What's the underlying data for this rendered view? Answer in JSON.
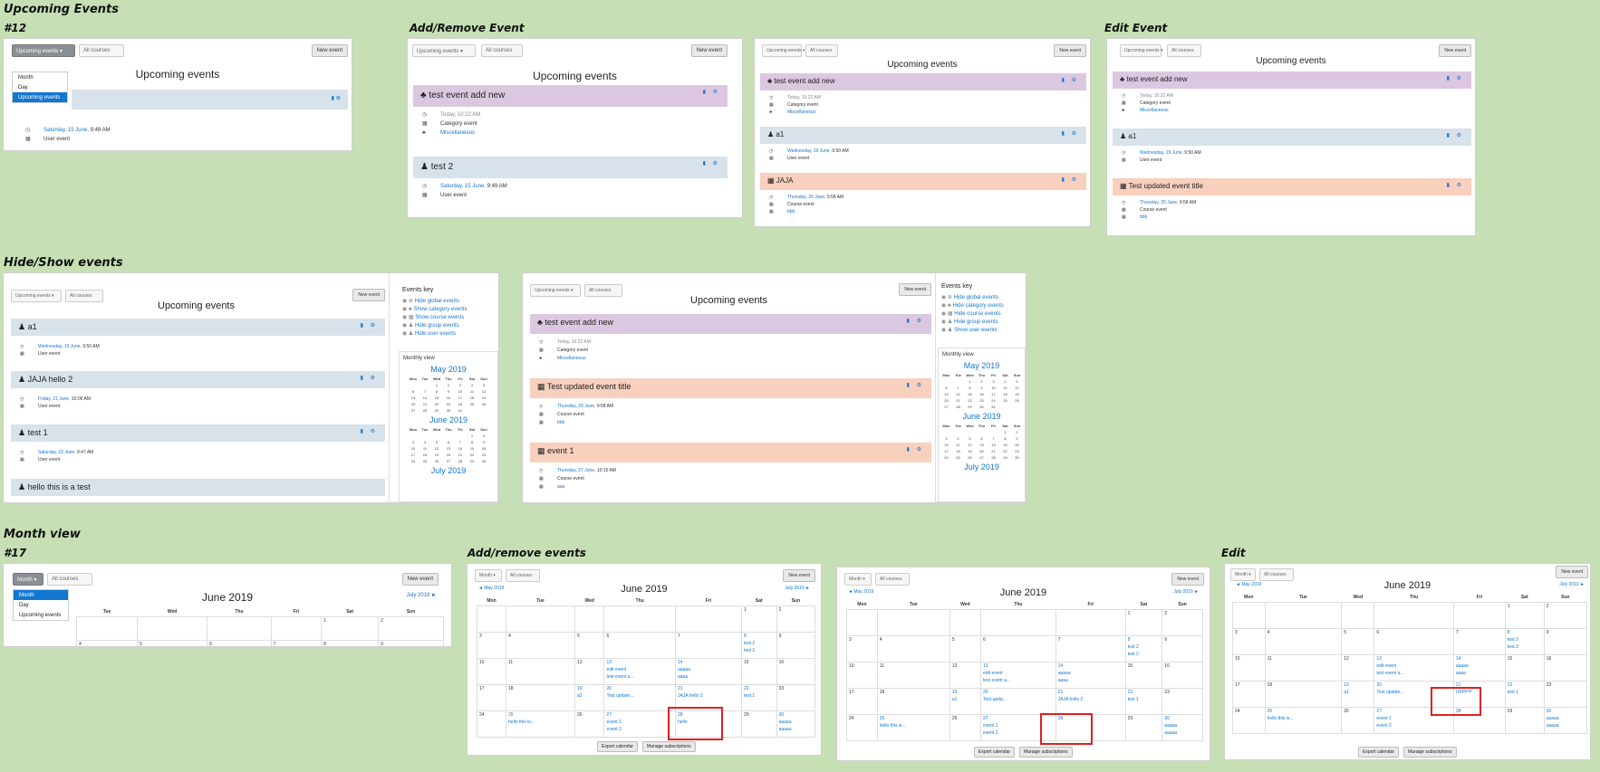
{
  "sections": {
    "upcoming": "Upcoming Events",
    "hideshow": "Hide/Show events",
    "month": "Month view"
  },
  "subs": {
    "n12": "#12",
    "addremove": "Add/Remove Event",
    "edit": "Edit Event",
    "n17": "#17",
    "addremove2": "Add/remove events",
    "edit2": "Edit"
  },
  "common": {
    "upcoming_events": "Upcoming events",
    "all_courses": "All courses",
    "new_event": "New event",
    "month": "Month",
    "day": "Day",
    "june": "June 2019",
    "may": "May 2019",
    "july": "July 2019",
    "prev": "◄ May 2019",
    "next": "July 2019 ►",
    "export": "Export calendar",
    "manage": "Manage subscriptions",
    "monthly_view": "Monthly view",
    "events_key": "Events key"
  },
  "menu1": [
    "Month",
    "Day",
    "Upcoming events"
  ],
  "menu2": [
    "Month",
    "Day",
    "Upcoming events"
  ],
  "p1": {
    "sel": "Upcoming events ▾",
    "event_date": "Saturday, 15 June,",
    "event_time": " 9:49 AM",
    "event_type": "User event"
  },
  "p2": {
    "e1_title": "test event add new",
    "e1_date": "Today, 10:22 AM",
    "e1_type": "Category event",
    "e1_cat": "Miscellaneous",
    "e2_title": "test 2",
    "e2_date": "Saturday, 15 June,",
    "e2_time": " 9:49 AM",
    "e2_type": "User event"
  },
  "p3": {
    "e1_title": "test event add new",
    "e1_date": "Today, 10:22 AM",
    "e1_type": "Category event",
    "e1_cat": "Miscellaneous",
    "e2_title": "a1",
    "e2_date": "Wednesday, 19 June,",
    "e2_time": " 9:50 AM",
    "e2_type": "User event",
    "e3_title": "JAJA",
    "e3_date": "Thursday, 20 June,",
    "e3_time": " 9:58 AM",
    "e3_type": "Course event",
    "e3_course": "bbb"
  },
  "p4": {
    "e1_title": "test event add new",
    "e1_date": "Today, 10:22 AM",
    "e1_type": "Category event",
    "e1_cat": "Miscellaneous",
    "e2_title": "a1",
    "e2_date": "Wednesday, 19 June,",
    "e2_time": " 9:50 AM",
    "e2_type": "User event",
    "e3_title": "Test updated event title",
    "e3_date": "Thursday, 20 June,",
    "e3_time": " 9:58 AM",
    "e3_type": "Course event",
    "e3_course": "bbb"
  },
  "p5": {
    "e1_title": "a1",
    "e1_date": "Wednesday, 19 June,",
    "e1_time": " 9:50 AM",
    "e1_type": "User event",
    "e2_title": "JAJA hello 2",
    "e2_date": "Friday, 21 June,",
    "e2_time": " 10:06 AM",
    "e2_type": "User event",
    "e3_title": "test 1",
    "e3_date": "Saturday, 22 June,",
    "e3_time": " 9:47 AM",
    "e3_type": "User event",
    "e4_title": "hello this is a test"
  },
  "key5": [
    "Hide global events",
    "Show category events",
    "Show course events",
    "Hide group events",
    "Hide user events"
  ],
  "p6": {
    "e1_title": "test event add new",
    "e1_date": "Today, 10:22 AM",
    "e1_type": "Category event",
    "e1_cat": "Miscellaneous",
    "e2_title": "Test updated event title",
    "e2_date": "Thursday, 20 June,",
    "e2_time": " 9:58 AM",
    "e2_type": "Course event",
    "e2_course": "bbb",
    "e3_title": "event 1",
    "e3_date": "Thursday, 27 June,",
    "e3_time": " 10:15 AM",
    "e3_type": "Course event",
    "e3_course": "aaa"
  },
  "key6": [
    "Hide global events",
    "Hide category events",
    "Hide course events",
    "Hide group events",
    "Show user events"
  ],
  "dow": [
    "Mon",
    "Tue",
    "Wed",
    "Thu",
    "Fri",
    "Sat",
    "Sun"
  ],
  "dow_mini": [
    "Mon",
    "Tue",
    "Wed",
    "Thu",
    "Fri",
    "Sat",
    "Sun"
  ],
  "cal_weeks": [
    [
      "",
      "",
      "",
      "",
      "",
      "1",
      "2"
    ],
    [
      "3",
      "4",
      "5",
      "6",
      "7",
      "8",
      "9"
    ],
    [
      "10",
      "11",
      "12",
      "13",
      "14",
      "15",
      "16"
    ],
    [
      "17",
      "18",
      "19",
      "20",
      "21",
      "22",
      "23"
    ],
    [
      "24",
      "25",
      "26",
      "27",
      "28",
      "29",
      "30"
    ]
  ],
  "cal_events_m2": {
    "8": [
      "test 2",
      "test 2"
    ],
    "13": [
      "edit event",
      "test event a..."
    ],
    "14": [
      "aaaaa",
      "aaaa"
    ],
    "19": [
      "a2"
    ],
    "20": [
      "Test update..."
    ],
    "21": [
      "JAJA hello 2"
    ],
    "22": [
      "test 1"
    ],
    "25": [
      "hello this is..."
    ],
    "27": [
      "event 1",
      "event 2"
    ],
    "28": [
      "hello"
    ],
    "30": [
      "aaaaa",
      "aaaaa"
    ]
  },
  "cal_events_m3": {
    "8": [
      "test 2",
      "test 2"
    ],
    "13": [
      "edit event",
      "test event a..."
    ],
    "14": [
      "aaaaa",
      "aaaa"
    ],
    "19": [
      "a1"
    ],
    "20": [
      "Test upda..."
    ],
    "21": [
      "JAJA hello 2"
    ],
    "22": [
      "test 1"
    ],
    "25": [
      "hello this is..."
    ],
    "27": [
      "event 1",
      "event 2"
    ],
    "30": [
      "aaaaa",
      "aaaaa"
    ]
  },
  "cal_events_m4": {
    "8": [
      "test 2",
      "test 2"
    ],
    "13": [
      "edit event",
      "test event a..."
    ],
    "14": [
      "aaaaa",
      "aaaa"
    ],
    "19": [
      "a1"
    ],
    "20": [
      "Test update..."
    ],
    "21": [
      "UPPP!!!"
    ],
    "22": [
      "test 1"
    ],
    "25": [
      "hello this is..."
    ],
    "27": [
      "event 1",
      "event 2"
    ],
    "30": [
      "aaaaa",
      "aaaaa"
    ]
  },
  "mini_may": [
    [
      "",
      "",
      "1",
      "2",
      "3",
      "4",
      "5"
    ],
    [
      "6",
      "7",
      "8",
      "9",
      "10",
      "11",
      "12"
    ],
    [
      "13",
      "14",
      "15",
      "16",
      "17",
      "18",
      "19"
    ],
    [
      "20",
      "21",
      "22",
      "23",
      "24",
      "25",
      "26"
    ],
    [
      "27",
      "28",
      "29",
      "30",
      "31",
      "",
      ""
    ]
  ],
  "mini_june": [
    [
      "",
      "",
      "",
      "",
      "",
      "1",
      "2"
    ],
    [
      "3",
      "4",
      "5",
      "6",
      "7",
      "8",
      "9"
    ],
    [
      "10",
      "11",
      "12",
      "13",
      "14",
      "15",
      "16"
    ],
    [
      "17",
      "18",
      "19",
      "20",
      "21",
      "22",
      "23"
    ],
    [
      "24",
      "25",
      "26",
      "27",
      "28",
      "29",
      "30"
    ]
  ]
}
